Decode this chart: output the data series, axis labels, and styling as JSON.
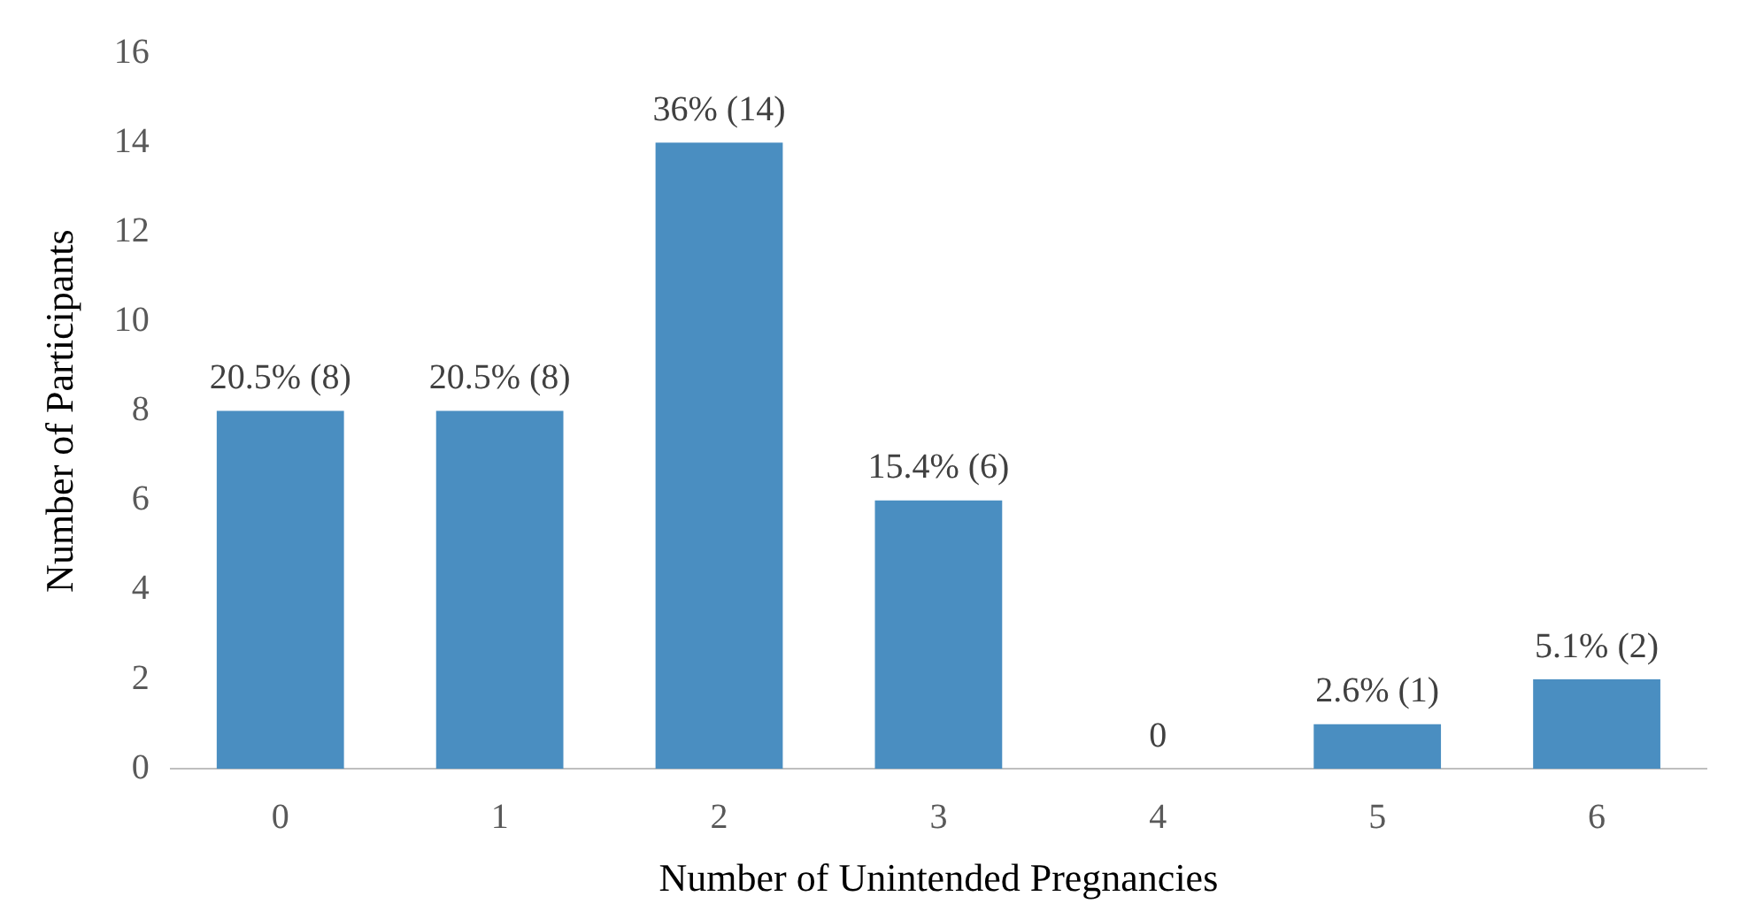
{
  "chart_data": {
    "type": "bar",
    "xlabel": "Number of Unintended Pregnancies",
    "ylabel": "Number of Participants",
    "categories": [
      "0",
      "1",
      "2",
      "3",
      "4",
      "5",
      "6"
    ],
    "values": [
      8,
      8,
      14,
      6,
      0,
      1,
      2
    ],
    "value_labels": [
      "20.5% (8)",
      "20.5% (8)",
      "36% (14)",
      "15.4% (6)",
      "0",
      "2.6% (1)",
      "5.1% (2)"
    ],
    "color": "#4a8ec1",
    "ylim": [
      0,
      16
    ],
    "yticks": [
      0,
      2,
      4,
      6,
      8,
      10,
      12,
      14,
      16
    ],
    "grid": false,
    "legend": false
  }
}
